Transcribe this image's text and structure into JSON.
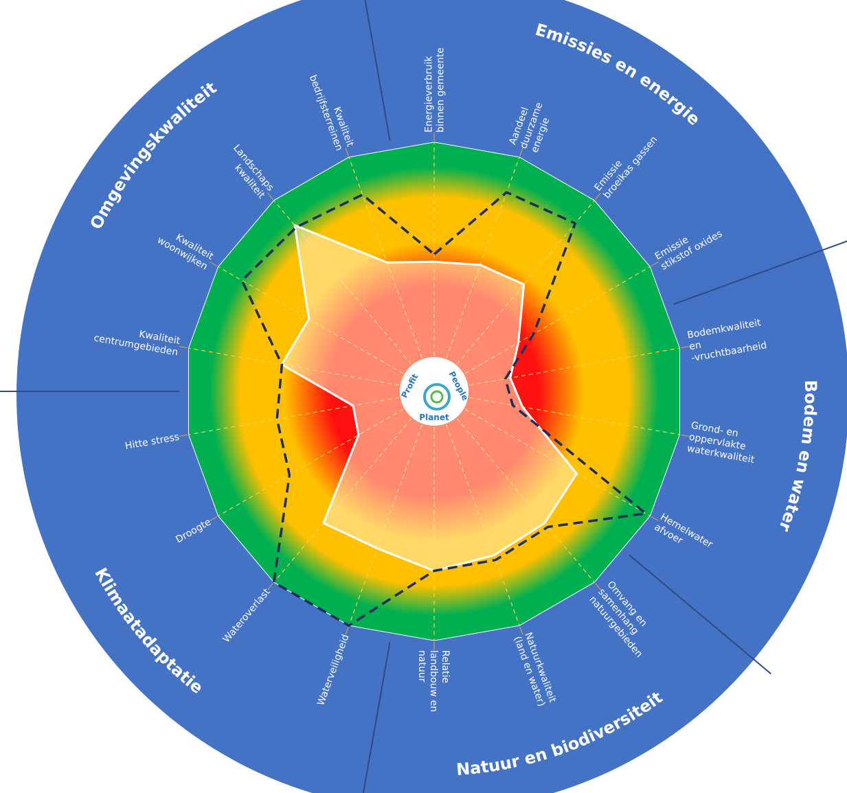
{
  "chart_data": {
    "type": "radar",
    "groups": [
      {
        "name": "Emissies en energie",
        "categories": [
          "Energieverbruik binnen gemeente",
          "Aandeel duurzame energie",
          "Emissie broeikas gassen",
          "Emissie stikstof oxides"
        ]
      },
      {
        "name": "Bodem en water",
        "categories": [
          "Bodemkwaliteit en -vruchtbaarheid",
          "Grond- en oppervlakte waterkwaliteit",
          "Hemelwater afvoer"
        ]
      },
      {
        "name": "Natuur en biodiversiteit",
        "categories": [
          "Omvang en samenhang natuurgebieden",
          "Natuurkwaliteit (land en water)",
          "Relatie landbouw en natuur"
        ]
      },
      {
        "name": "Klimaatadaptatie",
        "categories": [
          "Waterveiligheid",
          "Wateroverlast",
          "Droogte",
          "Hitte stress"
        ]
      },
      {
        "name": "Omgevingskwaliteit",
        "categories": [
          "Kwaliteit centrumgebieden",
          "Kwaliteit woonwijken",
          "Landschaps kwaliteit",
          "Kwaliteit bedrijfsterreinen"
        ]
      }
    ],
    "series": [
      {
        "color": "#ffffff",
        "values": [
          52,
          54,
          56,
          39,
          31,
          36,
          66,
          69,
          70,
          72,
          67,
          69,
          35,
          33,
          62,
          58,
          87,
          55
        ]
      },
      {
        "color": "#1f2d5a",
        "values": [
          55,
          85,
          88,
          46,
          29,
          32,
          98,
          71,
          72,
          72,
          100,
          100,
          67,
          64,
          62,
          89,
          86,
          84
        ]
      }
    ],
    "ylim": [
      0,
      100
    ],
    "center_labels": [
      "Profit",
      "People",
      "Planet"
    ]
  }
}
